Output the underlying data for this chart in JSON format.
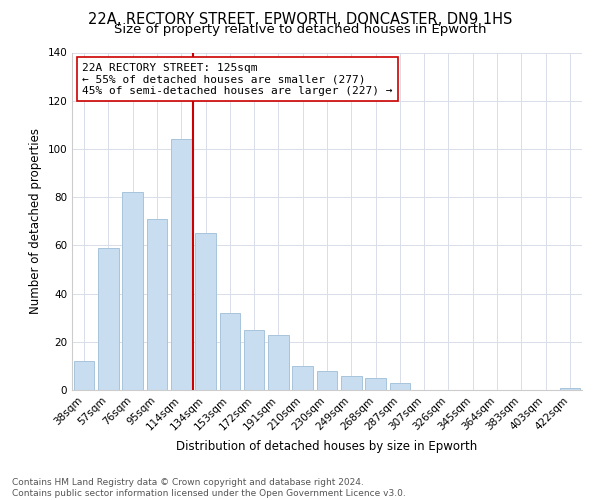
{
  "title": "22A, RECTORY STREET, EPWORTH, DONCASTER, DN9 1HS",
  "subtitle": "Size of property relative to detached houses in Epworth",
  "xlabel": "Distribution of detached houses by size in Epworth",
  "ylabel": "Number of detached properties",
  "categories": [
    "38sqm",
    "57sqm",
    "76sqm",
    "95sqm",
    "114sqm",
    "134sqm",
    "153sqm",
    "172sqm",
    "191sqm",
    "210sqm",
    "230sqm",
    "249sqm",
    "268sqm",
    "287sqm",
    "307sqm",
    "326sqm",
    "345sqm",
    "364sqm",
    "383sqm",
    "403sqm",
    "422sqm"
  ],
  "values": [
    12,
    59,
    82,
    71,
    104,
    65,
    32,
    25,
    23,
    10,
    8,
    6,
    5,
    3,
    0,
    0,
    0,
    0,
    0,
    0,
    1
  ],
  "bar_color": "#c8ddef",
  "bar_edge_color": "#a8c4dc",
  "vline_color": "#cc0000",
  "annotation_title": "22A RECTORY STREET: 125sqm",
  "annotation_line1": "← 55% of detached houses are smaller (277)",
  "annotation_line2": "45% of semi-detached houses are larger (227) →",
  "annotation_box_color": "#ffffff",
  "annotation_box_edge": "#cc0000",
  "ylim": [
    0,
    140
  ],
  "yticks": [
    0,
    20,
    40,
    60,
    80,
    100,
    120,
    140
  ],
  "footer_line1": "Contains HM Land Registry data © Crown copyright and database right 2024.",
  "footer_line2": "Contains public sector information licensed under the Open Government Licence v3.0.",
  "background_color": "#ffffff",
  "grid_color": "#d8dde8",
  "title_fontsize": 10.5,
  "subtitle_fontsize": 9.5,
  "axis_label_fontsize": 8.5,
  "tick_fontsize": 7.5,
  "annotation_fontsize": 8,
  "footer_fontsize": 6.5
}
